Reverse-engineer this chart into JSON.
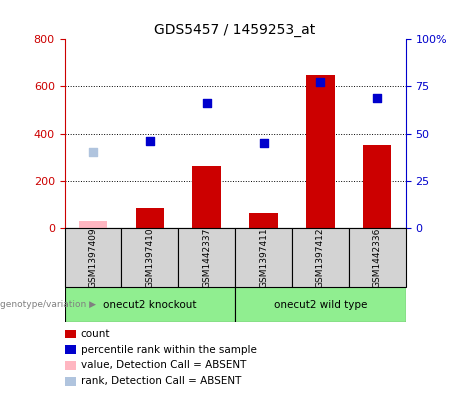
{
  "title": "GDS5457 / 1459253_at",
  "samples": [
    "GSM1397409",
    "GSM1397410",
    "GSM1442337",
    "GSM1397411",
    "GSM1397412",
    "GSM1442336"
  ],
  "count_values": [
    28,
    85,
    262,
    62,
    650,
    350
  ],
  "rank_values": [
    320,
    370,
    530,
    360,
    620,
    550
  ],
  "absent_indices": [
    0
  ],
  "ylim_left": [
    0,
    800
  ],
  "ylim_right": [
    0,
    100
  ],
  "yticks_left": [
    0,
    200,
    400,
    600,
    800
  ],
  "yticks_right": [
    0,
    25,
    50,
    75,
    100
  ],
  "ytick_labels_left": [
    "0",
    "200",
    "400",
    "600",
    "800"
  ],
  "ytick_labels_right": [
    "0",
    "25",
    "50",
    "75",
    "100%"
  ],
  "bar_color": "#CC0000",
  "bar_absent_color": "#FFB6C1",
  "marker_color": "#0000CC",
  "marker_absent_color": "#B0C4DE",
  "background_color": "#FFFFFF",
  "axis_left_color": "#CC0000",
  "axis_right_color": "#0000CC",
  "ko_group": [
    0,
    1,
    2
  ],
  "wt_group": [
    3,
    4,
    5
  ],
  "group_label_ko": "onecut2 knockout",
  "group_label_wt": "onecut2 wild type",
  "group_color": "#90EE90",
  "cell_color": "#D3D3D3",
  "legend_items": [
    {
      "color": "#CC0000",
      "label": "count"
    },
    {
      "color": "#0000CC",
      "label": "percentile rank within the sample"
    },
    {
      "color": "#FFB6C1",
      "label": "value, Detection Call = ABSENT"
    },
    {
      "color": "#B0C4DE",
      "label": "rank, Detection Call = ABSENT"
    }
  ]
}
